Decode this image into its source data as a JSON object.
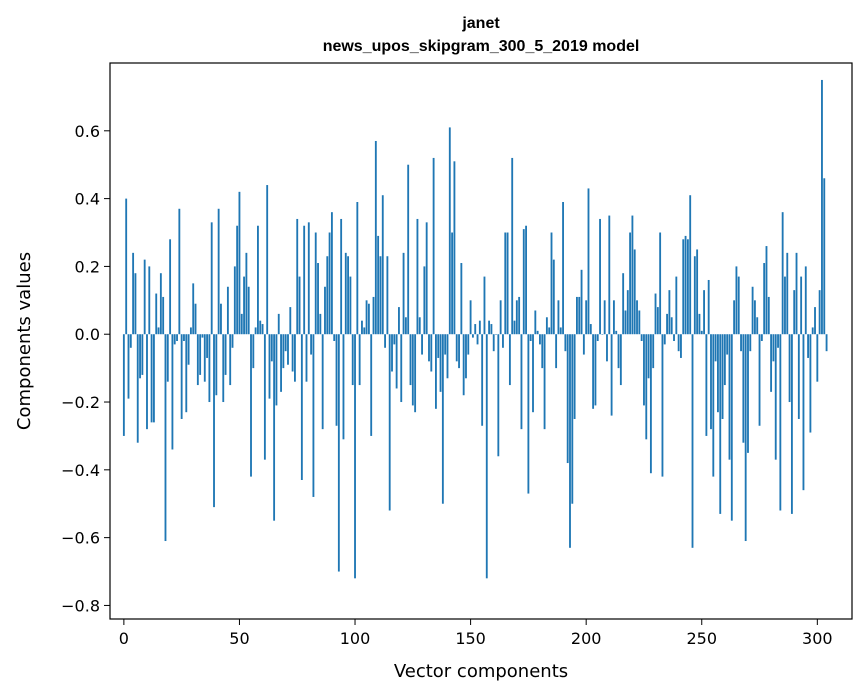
{
  "chart_data": {
    "type": "bar",
    "title_line1": "janet",
    "title_line2": "news_upos_skipgram_300_5_2019 model",
    "xlabel": "Vector components",
    "ylabel": "Components values",
    "xlim": [
      -6,
      315
    ],
    "ylim": [
      -0.84,
      0.8
    ],
    "xticks": [
      0,
      50,
      100,
      150,
      200,
      250,
      300
    ],
    "yticks": [
      -0.8,
      -0.6,
      -0.4,
      -0.2,
      0.0,
      0.2,
      0.4,
      0.6
    ],
    "ytick_labels": [
      "−0.8",
      "−0.6",
      "−0.4",
      "−0.2",
      "0.0",
      "0.2",
      "0.4",
      "0.6"
    ],
    "bar_color": "#1f77b4",
    "values": [
      -0.3,
      0.4,
      -0.19,
      -0.04,
      0.24,
      0.18,
      -0.32,
      -0.13,
      -0.12,
      0.22,
      -0.28,
      0.2,
      -0.26,
      -0.26,
      0.12,
      0.02,
      0.18,
      0.11,
      -0.61,
      -0.14,
      0.28,
      -0.34,
      -0.03,
      -0.02,
      0.37,
      -0.25,
      -0.02,
      -0.23,
      -0.09,
      0.02,
      0.15,
      0.09,
      -0.15,
      -0.12,
      -0.01,
      -0.14,
      -0.07,
      -0.2,
      0.33,
      -0.51,
      -0.18,
      0.37,
      0.09,
      -0.2,
      -0.12,
      0.14,
      -0.15,
      -0.04,
      0.2,
      0.32,
      0.42,
      0.06,
      0.17,
      0.24,
      0.14,
      -0.42,
      -0.1,
      0.02,
      0.32,
      0.04,
      0.03,
      -0.37,
      0.44,
      -0.19,
      -0.08,
      -0.55,
      -0.21,
      0.06,
      -0.17,
      -0.1,
      -0.05,
      -0.09,
      0.08,
      -0.11,
      -0.14,
      0.34,
      0.17,
      -0.43,
      0.32,
      -0.14,
      0.33,
      -0.06,
      -0.48,
      0.3,
      0.21,
      0.06,
      -0.28,
      0.14,
      0.23,
      0.3,
      0.36,
      -0.02,
      -0.27,
      -0.7,
      0.34,
      -0.31,
      0.24,
      0.23,
      0.17,
      -0.15,
      -0.72,
      0.39,
      -0.15,
      0.04,
      0.02,
      0.1,
      0.09,
      -0.3,
      0.11,
      0.57,
      0.29,
      0.23,
      0.41,
      -0.04,
      0.23,
      -0.52,
      -0.11,
      -0.03,
      -0.16,
      0.08,
      -0.2,
      0.24,
      0.05,
      0.5,
      -0.15,
      -0.21,
      -0.23,
      0.34,
      0.05,
      -0.06,
      0.2,
      0.33,
      -0.08,
      -0.11,
      0.52,
      -0.22,
      -0.07,
      -0.17,
      -0.5,
      -0.06,
      -0.13,
      0.61,
      0.3,
      0.51,
      -0.08,
      -0.1,
      0.21,
      -0.18,
      -0.13,
      -0.06,
      0.1,
      -0.01,
      0.03,
      -0.03,
      0.04,
      -0.27,
      0.17,
      -0.72,
      0.04,
      0.03,
      -0.05,
      0.0,
      -0.36,
      0.1,
      -0.04,
      0.3,
      0.3,
      -0.15,
      0.52,
      0.04,
      0.1,
      0.11,
      -0.28,
      0.31,
      0.32,
      -0.47,
      -0.02,
      -0.23,
      0.07,
      0.01,
      -0.03,
      -0.1,
      -0.28,
      0.05,
      0.02,
      0.3,
      0.22,
      -0.1,
      0.1,
      0.02,
      0.39,
      -0.05,
      -0.38,
      -0.63,
      -0.5,
      -0.25,
      0.11,
      0.11,
      0.19,
      -0.06,
      0.1,
      0.43,
      0.03,
      -0.22,
      -0.21,
      -0.02,
      0.34,
      0.0,
      0.1,
      -0.08,
      0.35,
      -0.24,
      0.1,
      0.01,
      -0.1,
      -0.15,
      0.18,
      0.07,
      0.13,
      0.3,
      0.35,
      0.25,
      0.1,
      0.07,
      -0.02,
      -0.21,
      -0.31,
      -0.13,
      -0.41,
      -0.1,
      0.12,
      0.08,
      0.3,
      -0.42,
      -0.03,
      0.06,
      0.13,
      0.05,
      -0.02,
      0.17,
      -0.05,
      -0.07,
      0.28,
      0.29,
      0.28,
      0.41,
      -0.63,
      0.23,
      0.25,
      0.06,
      0.01,
      0.13,
      -0.3,
      0.16,
      -0.28,
      -0.42,
      -0.08,
      -0.23,
      -0.53,
      -0.25,
      -0.15,
      -0.06,
      -0.37,
      -0.55,
      0.1,
      0.2,
      0.17,
      -0.05,
      -0.32,
      -0.61,
      -0.35,
      -0.05,
      0.14,
      0.1,
      0.05,
      -0.27,
      -0.02,
      0.21,
      0.26,
      0.11,
      -0.17,
      -0.08,
      -0.37,
      -0.04,
      -0.52,
      0.36,
      0.17,
      0.24,
      -0.2,
      -0.53,
      0.13,
      0.24,
      -0.25,
      0.17,
      -0.46,
      0.2,
      -0.07,
      -0.29,
      0.02,
      0.08,
      -0.14,
      0.13,
      0.75,
      0.46,
      -0.05
    ]
  }
}
